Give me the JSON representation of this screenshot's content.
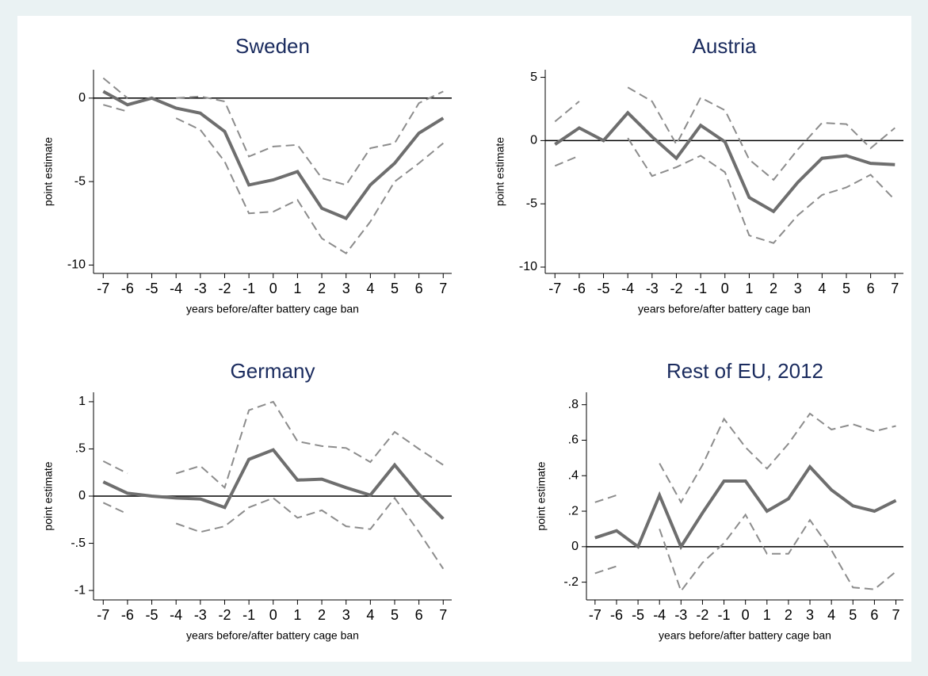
{
  "chart_data": [
    {
      "type": "line",
      "title": "Sweden",
      "xlabel": "years before/after battery cage ban",
      "ylabel": "point estimate",
      "x": [
        -7,
        -6,
        -5,
        -4,
        -3,
        -2,
        -1,
        0,
        1,
        2,
        3,
        4,
        5,
        6,
        7
      ],
      "xlim": [
        -7.4,
        7.35
      ],
      "xticks": [
        -7,
        -6,
        -5,
        -4,
        -3,
        -2,
        -1,
        0,
        1,
        2,
        3,
        4,
        5,
        6,
        7
      ],
      "ylim": [
        -10.5,
        1.7
      ],
      "yticks": [
        0,
        -5,
        -10
      ],
      "hline": 0,
      "series": [
        {
          "style": "solid",
          "color": "#6e6e6e",
          "values": [
            0.4,
            -0.4,
            0,
            -0.6,
            -0.9,
            -2.0,
            -5.2,
            -4.9,
            -4.4,
            -6.6,
            -7.2,
            -5.2,
            -3.9,
            -2.1,
            -1.2
          ]
        },
        {
          "style": "dashed",
          "color": "#8c8c8c",
          "values": [
            1.2,
            0.0,
            null,
            0.0,
            0.1,
            -0.2,
            -3.5,
            -2.9,
            -2.8,
            -4.8,
            -5.2,
            -3.0,
            -2.7,
            -0.3,
            0.4
          ]
        },
        {
          "style": "dashed",
          "color": "#8c8c8c",
          "values": [
            -0.4,
            -0.8,
            null,
            -1.2,
            -1.9,
            -3.8,
            -6.9,
            -6.8,
            -6.1,
            -8.4,
            -9.3,
            -7.4,
            -5.0,
            -3.9,
            -2.7
          ]
        }
      ]
    },
    {
      "type": "line",
      "title": "Austria",
      "xlabel": "years before/after battery cage ban",
      "ylabel": "point estimate",
      "x": [
        -7,
        -6,
        -5,
        -4,
        -3,
        -2,
        -1,
        0,
        1,
        2,
        3,
        4,
        5,
        6,
        7
      ],
      "xlim": [
        -7.4,
        7.35
      ],
      "xticks": [
        -7,
        -6,
        -5,
        -4,
        -3,
        -2,
        -1,
        0,
        1,
        2,
        3,
        4,
        5,
        6,
        7
      ],
      "ylim": [
        -10.5,
        5.6
      ],
      "yticks": [
        5,
        0,
        -5,
        -10
      ],
      "hline": 0,
      "series": [
        {
          "style": "solid",
          "color": "#6e6e6e",
          "values": [
            -0.3,
            1.0,
            0,
            2.2,
            0.3,
            -1.4,
            1.2,
            -0.1,
            -4.5,
            -5.6,
            -3.3,
            -1.4,
            -1.2,
            -1.8,
            -1.9
          ]
        },
        {
          "style": "dashed",
          "color": "#8c8c8c",
          "values": [
            1.5,
            3.1,
            null,
            4.2,
            3.1,
            -0.3,
            3.4,
            2.4,
            -1.5,
            -3.1,
            -0.7,
            1.4,
            1.3,
            -0.6,
            1.0
          ]
        },
        {
          "style": "dashed",
          "color": "#8c8c8c",
          "values": [
            -2.0,
            -1.2,
            null,
            0.2,
            -2.8,
            -2.1,
            -1.2,
            -2.5,
            -7.5,
            -8.1,
            -5.9,
            -4.3,
            -3.7,
            -2.7,
            -4.7
          ]
        }
      ]
    },
    {
      "type": "line",
      "title": "Germany",
      "xlabel": "years before/after battery cage ban",
      "ylabel": "point estimate",
      "x": [
        -7,
        -6,
        -5,
        -4,
        -3,
        -2,
        -1,
        0,
        1,
        2,
        3,
        4,
        5,
        6,
        7
      ],
      "xlim": [
        -7.4,
        7.35
      ],
      "xticks": [
        -7,
        -6,
        -5,
        -4,
        -3,
        -2,
        -1,
        0,
        1,
        2,
        3,
        4,
        5,
        6,
        7
      ],
      "ylim": [
        -1.1,
        1.1
      ],
      "yticks": [
        1,
        {
          "value": 0.5,
          "label": ".5"
        },
        0,
        {
          "value": -0.5,
          "label": "-.5"
        },
        -1
      ],
      "hline": 0,
      "series": [
        {
          "style": "solid",
          "color": "#6e6e6e",
          "values": [
            0.15,
            0.03,
            0,
            -0.02,
            -0.03,
            -0.12,
            0.39,
            0.49,
            0.17,
            0.18,
            0.09,
            0.01,
            0.33,
            0.02,
            -0.24
          ]
        },
        {
          "style": "dashed",
          "color": "#8c8c8c",
          "values": [
            0.37,
            0.24,
            null,
            0.24,
            0.32,
            0.09,
            0.91,
            1.0,
            0.58,
            0.53,
            0.51,
            0.36,
            0.68,
            0.5,
            0.33
          ]
        },
        {
          "style": "dashed",
          "color": "#8c8c8c",
          "values": [
            -0.07,
            -0.19,
            null,
            -0.29,
            -0.38,
            -0.32,
            -0.12,
            -0.02,
            -0.23,
            -0.15,
            -0.32,
            -0.35,
            -0.02,
            -0.38,
            -0.77
          ]
        }
      ]
    },
    {
      "type": "line",
      "title": "Rest of EU, 2012",
      "xlabel": "years before/after battery cage ban",
      "ylabel": "point estimate",
      "x": [
        -7,
        -6,
        -5,
        -4,
        -3,
        -2,
        -1,
        0,
        1,
        2,
        3,
        4,
        5,
        6,
        7
      ],
      "xlim": [
        -7.4,
        7.35
      ],
      "xticks": [
        -7,
        -6,
        -5,
        -4,
        -3,
        -2,
        -1,
        0,
        1,
        2,
        3,
        4,
        5,
        6,
        7
      ],
      "ylim": [
        -0.3,
        0.87
      ],
      "yticks": [
        {
          "value": 0.8,
          "label": ".8"
        },
        {
          "value": 0.6,
          "label": ".6"
        },
        {
          "value": 0.4,
          "label": ".4"
        },
        {
          "value": 0.2,
          "label": ".2"
        },
        0,
        {
          "value": -0.2,
          "label": "-.2"
        }
      ],
      "hline": 0,
      "series": [
        {
          "style": "solid",
          "color": "#6e6e6e",
          "values": [
            0.05,
            0.09,
            0,
            0.29,
            0.0,
            0.19,
            0.37,
            0.37,
            0.2,
            0.27,
            0.45,
            0.32,
            0.23,
            0.2,
            0.26
          ]
        },
        {
          "style": "dashed",
          "color": "#8c8c8c",
          "values": [
            0.25,
            0.29,
            null,
            0.47,
            0.25,
            0.46,
            0.72,
            0.56,
            0.44,
            0.58,
            0.75,
            0.66,
            0.69,
            0.65,
            0.68
          ]
        },
        {
          "style": "dashed",
          "color": "#8c8c8c",
          "values": [
            -0.15,
            -0.11,
            null,
            0.1,
            -0.25,
            -0.09,
            0.02,
            0.18,
            -0.04,
            -0.04,
            0.15,
            -0.02,
            -0.23,
            -0.24,
            -0.14
          ]
        }
      ]
    }
  ]
}
